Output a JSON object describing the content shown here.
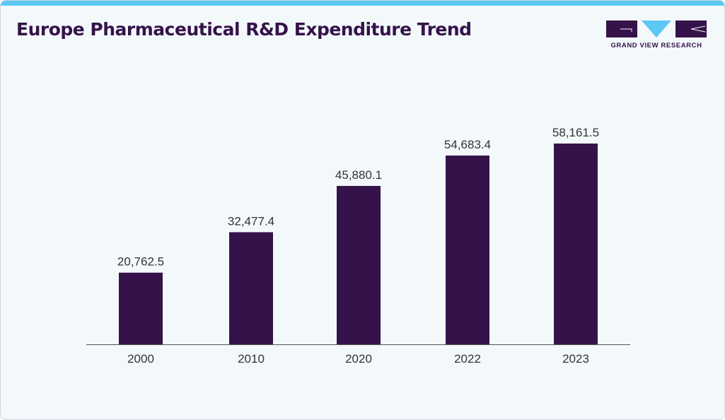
{
  "title": "Europe Pharmaceutical R&D Expenditure Trend",
  "logo": {
    "text": "GRAND VIEW RESEARCH",
    "colors": {
      "dark": "#35134a",
      "accent": "#5bc8f5"
    }
  },
  "colors": {
    "bar": "#35134a",
    "background": "#f3f8fb",
    "top_bar": "#5bc8f5"
  },
  "chart_data": {
    "type": "bar",
    "title": "Europe Pharmaceutical R&D Expenditure Trend",
    "categories": [
      "2000",
      "2010",
      "2020",
      "2022",
      "2023"
    ],
    "values": [
      20762.5,
      32477.4,
      45880.1,
      54683.4,
      58161.5
    ],
    "labels": [
      "20,762.5",
      "32,477.4",
      "45,880.1",
      "54,683.4",
      "58,161.5"
    ],
    "xlabel": "",
    "ylabel": "",
    "ylim": [
      0,
      58161.5
    ],
    "grid": false,
    "data_labels": true
  }
}
